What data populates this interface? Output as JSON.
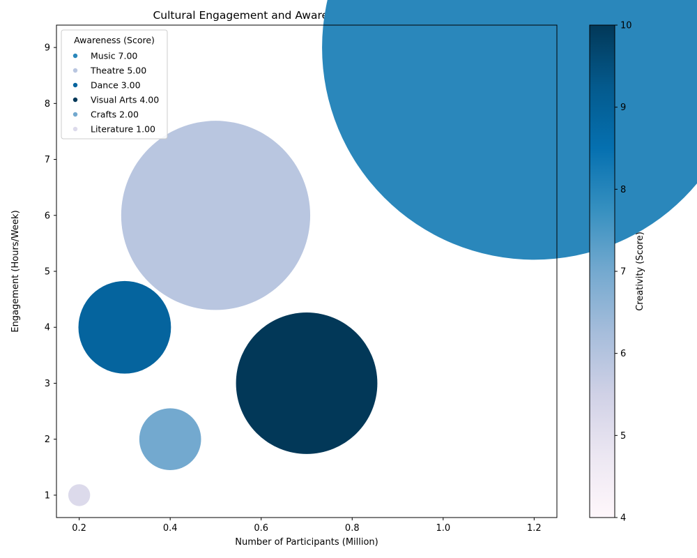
{
  "chart_data": {
    "type": "scatter",
    "title": "Cultural Engagement and Awareness of Various Artforms",
    "xlabel": "Number of Participants (Million)",
    "ylabel": "Engagement (Hours/Week)",
    "xlim": [
      0.15,
      1.25
    ],
    "ylim": [
      0.6,
      9.4
    ],
    "xticks": [
      0.2,
      0.4,
      0.6,
      0.8,
      1.0,
      1.2
    ],
    "xtick_labels": [
      "0.2",
      "0.4",
      "0.6",
      "0.8",
      "1.0",
      "1.2"
    ],
    "yticks": [
      1,
      2,
      3,
      4,
      5,
      6,
      7,
      8,
      9
    ],
    "ytick_labels": [
      "1",
      "2",
      "3",
      "4",
      "5",
      "6",
      "7",
      "8",
      "9"
    ],
    "grid": false,
    "legend": {
      "title": "Awareness (Score)",
      "placement": "upper-left",
      "entries": [
        {
          "label": "Music 7.00",
          "color": "#2a87bb"
        },
        {
          "label": "Theatre 5.00",
          "color": "#b9c6e0"
        },
        {
          "label": "Dance 3.00",
          "color": "#05649e"
        },
        {
          "label": "Visual Arts 4.00",
          "color": "#023858"
        },
        {
          "label": "Crafts 2.00",
          "color": "#73a9cf"
        },
        {
          "label": "Literature 1.00",
          "color": "#dcdaeb"
        }
      ]
    },
    "points": [
      {
        "name": "Music",
        "participants": 1.2,
        "engagement": 9,
        "awareness": 7,
        "creativity": 8,
        "color": "#2a87bb"
      },
      {
        "name": "Theatre",
        "participants": 0.5,
        "engagement": 6,
        "awareness": 5,
        "creativity": 6,
        "color": "#b9c6e0"
      },
      {
        "name": "Dance",
        "participants": 0.3,
        "engagement": 4,
        "awareness": 3,
        "creativity": 9,
        "color": "#05649e"
      },
      {
        "name": "Visual Arts",
        "participants": 0.7,
        "engagement": 3,
        "awareness": 4,
        "creativity": 10,
        "color": "#023858"
      },
      {
        "name": "Crafts",
        "participants": 0.4,
        "engagement": 2,
        "awareness": 2,
        "creativity": 7,
        "color": "#73a9cf"
      },
      {
        "name": "Literature",
        "participants": 0.2,
        "engagement": 1,
        "awareness": 1,
        "creativity": 5,
        "color": "#dcdaeb"
      }
    ],
    "colorbar": {
      "label": "Creativity (Score)",
      "range": [
        4,
        10
      ],
      "ticks": [
        4,
        5,
        6,
        7,
        8,
        9,
        10
      ],
      "colors": [
        "#fff7fb",
        "#ece7f2",
        "#d0d1e6",
        "#a6bddb",
        "#74a9cf",
        "#3690c0",
        "#0570b0",
        "#045a8d",
        "#023858"
      ]
    }
  }
}
